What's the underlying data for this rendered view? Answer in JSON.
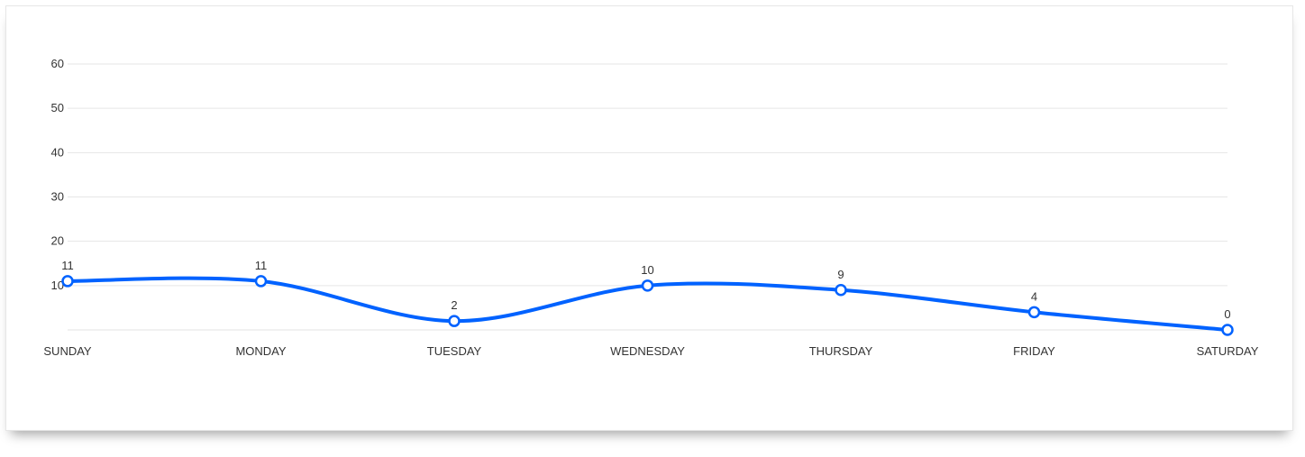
{
  "chart_data": {
    "type": "line",
    "categories": [
      "SUNDAY",
      "MONDAY",
      "TUESDAY",
      "WEDNESDAY",
      "THURSDAY",
      "FRIDAY",
      "SATURDAY"
    ],
    "series": [
      {
        "values": [
          11,
          11,
          2,
          10,
          9,
          4,
          0
        ]
      }
    ],
    "ylim": [
      0,
      60
    ],
    "yticks": [
      10,
      20,
      30,
      40,
      50,
      60
    ],
    "grid": true,
    "legend": "none",
    "smooth": true,
    "line_color": "#0062ff",
    "marker_fill": "#ffffff"
  }
}
